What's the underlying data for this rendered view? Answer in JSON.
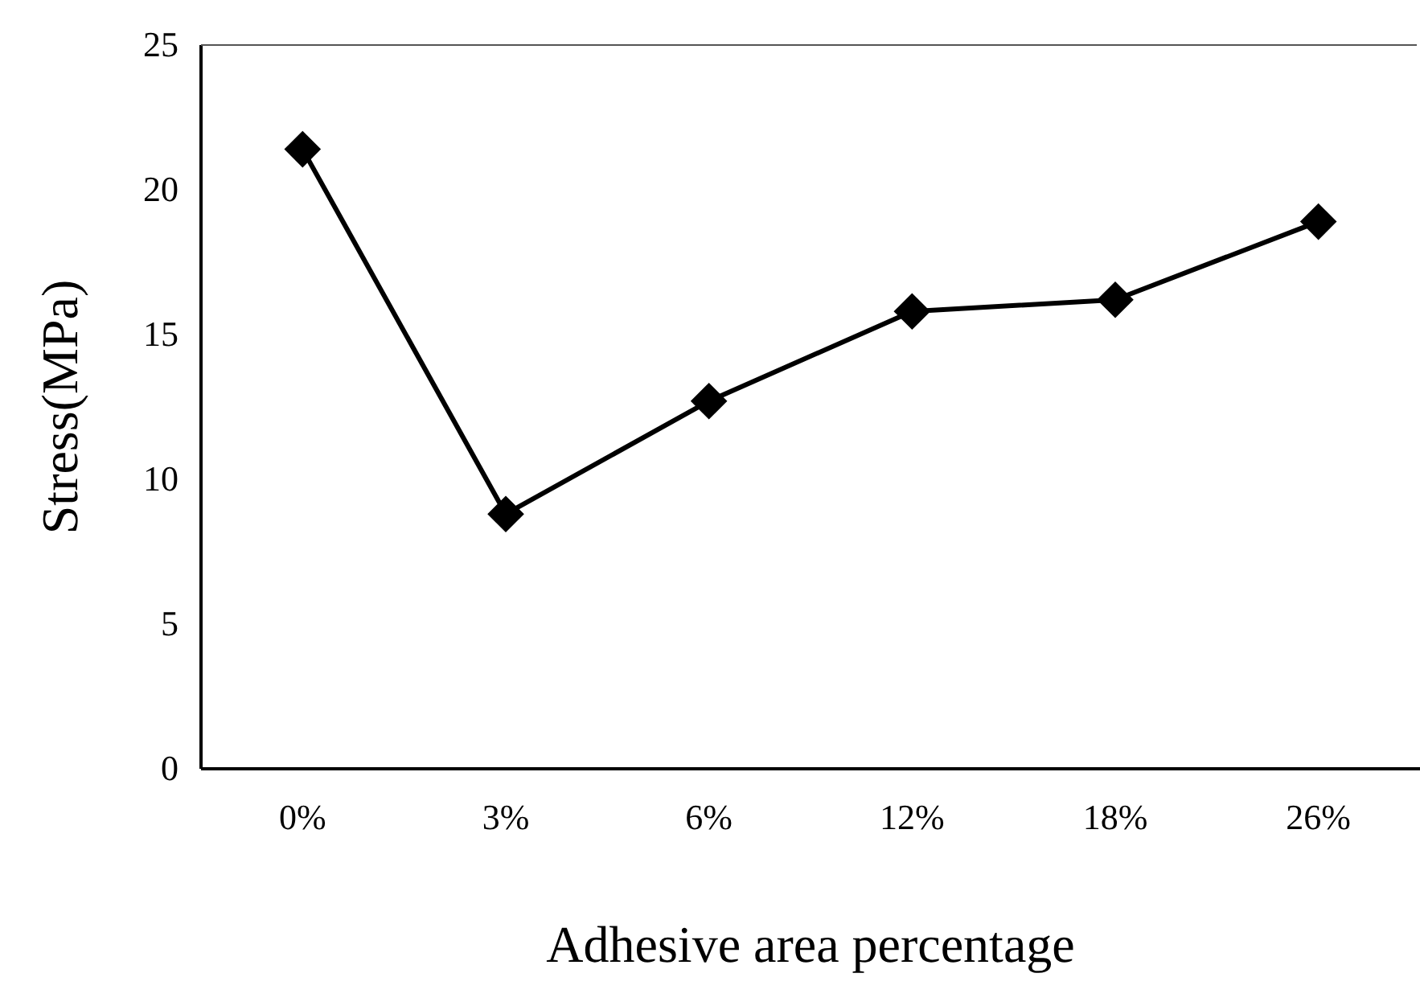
{
  "chart_data": {
    "type": "line",
    "xlabel": "Adhesive area percentage",
    "ylabel": "Stress(MPa)",
    "categories": [
      "0%",
      "3%",
      "6%",
      "12%",
      "18%",
      "26%"
    ],
    "series": [
      {
        "color": "#000000",
        "values": [
          21.4,
          8.8,
          12.7,
          15.8,
          16.2,
          18.9
        ]
      }
    ],
    "ylim": [
      0,
      25
    ],
    "yticks": [
      0,
      5,
      10,
      15,
      20,
      25
    ],
    "grid": false,
    "marker": "diamond",
    "line_style": "solid"
  }
}
